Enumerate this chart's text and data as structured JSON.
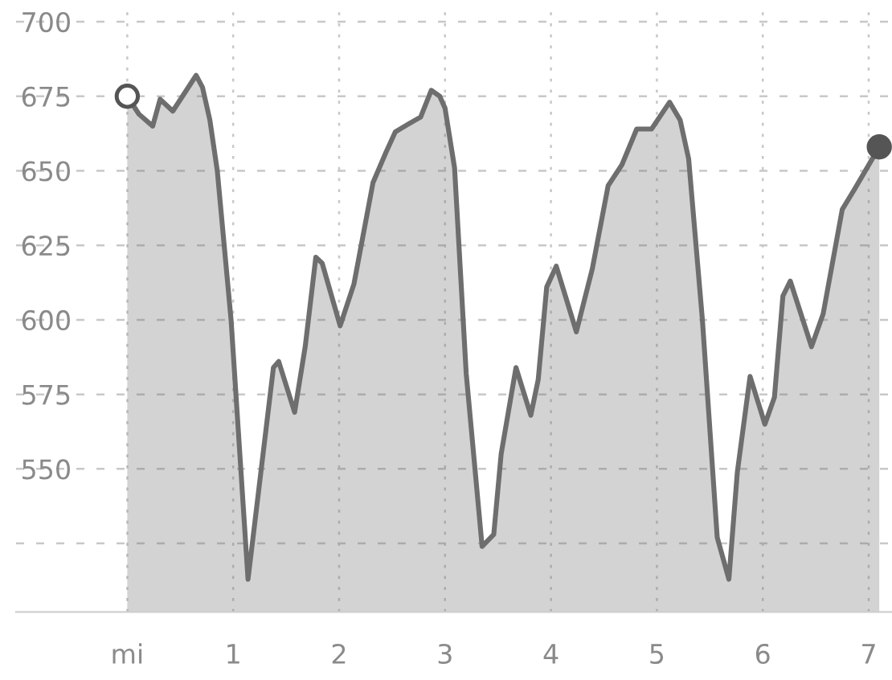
{
  "chart_data": {
    "type": "area",
    "xlim": [
      -1.05,
      7.22
    ],
    "ylim": [
      502,
      705
    ],
    "xticks": [
      {
        "value": 0,
        "label": "mi"
      },
      1,
      2,
      3,
      4,
      5,
      6,
      7
    ],
    "yticks": [
      {
        "value": 525,
        "label": null
      },
      550,
      575,
      600,
      625,
      650,
      675,
      700
    ],
    "grid": true,
    "series": [
      {
        "color": "#6e6e6e",
        "x": [
          0,
          0.11,
          0.24,
          0.31,
          0.43,
          0.65,
          0.71,
          0.78,
          0.85,
          0.98,
          1.14,
          1.38,
          1.43,
          1.58,
          1.68,
          1.78,
          1.84,
          2.01,
          2.14,
          2.32,
          2.44,
          2.53,
          2.67,
          2.77,
          2.87,
          2.95,
          3.0,
          3.09,
          3.2,
          3.35,
          3.46,
          3.53,
          3.67,
          3.81,
          3.88,
          3.96,
          4.05,
          4.24,
          4.39,
          4.54,
          4.67,
          4.81,
          4.95,
          5.12,
          5.22,
          5.3,
          5.43,
          5.57,
          5.68,
          5.76,
          5.88,
          6.02,
          6.11,
          6.19,
          6.26,
          6.46,
          6.57,
          6.75,
          6.87,
          7.1
        ],
        "values": [
          675,
          669,
          665,
          674,
          670,
          682,
          678,
          667,
          650,
          600,
          513,
          584,
          586,
          569,
          591,
          621,
          619,
          598,
          612,
          646,
          656,
          663,
          666,
          668,
          677,
          675,
          671,
          651,
          582,
          524,
          528,
          555,
          584,
          568,
          580,
          611,
          618,
          596,
          617,
          645,
          652,
          664,
          664,
          673,
          667,
          654,
          600,
          527,
          513,
          549,
          581,
          565,
          574,
          608,
          613,
          591,
          602,
          637,
          644,
          658
        ]
      },
      {
        "type": "scatter",
        "marker": "circle",
        "color": "#ffffff",
        "x": [
          0
        ],
        "values": [
          675
        ]
      },
      {
        "type": "scatter",
        "marker": "circle",
        "color": "#555555",
        "x": [
          7.1
        ],
        "values": [
          658
        ]
      }
    ]
  }
}
